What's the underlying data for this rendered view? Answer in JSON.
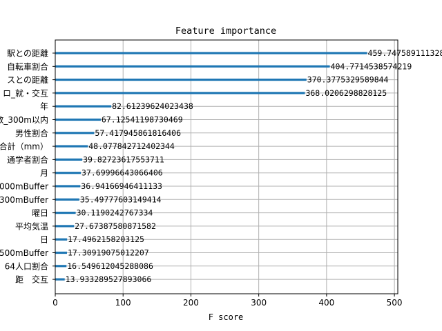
{
  "chart_data": {
    "type": "bar",
    "orientation": "horizontal",
    "title": "Feature importance",
    "xlabel": "F score",
    "ylabel": "",
    "xlim": [
      0,
      505
    ],
    "xticks": [
      0,
      100,
      200,
      300,
      400,
      500
    ],
    "grid": true,
    "bar_color": "#1f77b4",
    "categories": [
      "駅との距離",
      "自転車割合",
      "スとの距離",
      "ロ_就・交互",
      "年",
      "数_300m以内",
      "男性割合",
      "合計（mm）",
      "通学者割合",
      "月",
      "000mBuffer",
      "300mBuffer",
      "曜日",
      "平均気温",
      "日",
      "500mBuffer",
      "64人口割合",
      "距　交互"
    ],
    "values": [
      459.747589111328,
      404.7714538574219,
      370.3775329589844,
      368.0206298828125,
      82.61239624023438,
      67.12541198730469,
      57.417945861816406,
      48.077842712402344,
      39.82723617553711,
      37.69996643066406,
      36.94166946411133,
      35.49777603149414,
      30.1190242767334,
      27.67387580871582,
      17.4962158203125,
      17.30919075012207,
      16.549612045288086,
      13.933289527893066
    ],
    "value_labels": [
      "459.747589111328",
      "404.7714538574219",
      "370.3775329589844",
      "368.0206298828125",
      "82.61239624023438",
      "67.12541198730469",
      "57.417945861816406",
      "48.077842712402344",
      "39.82723617553711",
      "37.69996643066406",
      "36.94166946411133",
      "35.49777603149414",
      "30.1190242767334",
      "27.67387580871582",
      "17.4962158203125",
      "17.30919075012207",
      "16.549612045288086",
      "13.933289527893066"
    ]
  }
}
